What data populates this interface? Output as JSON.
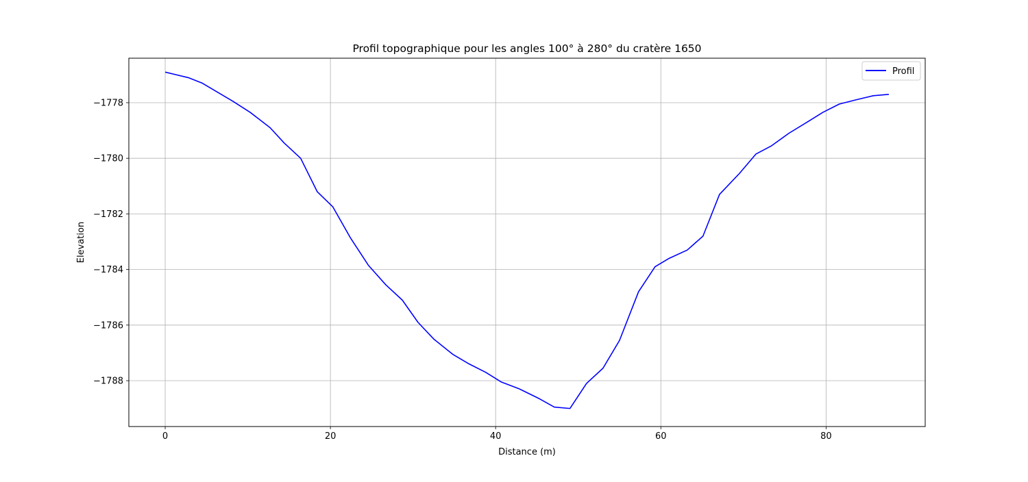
{
  "chart_data": {
    "type": "line",
    "title": "Profil topographique pour les angles 100° à 280° du cratère 1650",
    "xlabel": "Distance (m)",
    "ylabel": "Elevation",
    "xlim": [
      -4.4,
      92.0
    ],
    "ylim": [
      -1789.65,
      -1776.4
    ],
    "xticks": [
      0,
      20,
      40,
      60,
      80
    ],
    "yticks": [
      -1778,
      -1780,
      -1782,
      -1784,
      -1786,
      -1788
    ],
    "xtick_labels": [
      "0",
      "20",
      "40",
      "60",
      "80"
    ],
    "ytick_labels": [
      "−1778",
      "−1780",
      "−1782",
      "−1784",
      "−1786",
      "−1788"
    ],
    "grid": true,
    "legend_position": "top-right",
    "series": [
      {
        "name": "Profil",
        "color": "#0000ff",
        "x": [
          0,
          2.8,
          4.5,
          6.2,
          8.2,
          10.3,
          12.7,
          14.4,
          16.4,
          18.4,
          20.3,
          22.4,
          24.6,
          26.7,
          28.7,
          30.6,
          32.5,
          34.8,
          36.8,
          38.8,
          40.7,
          42.9,
          45.3,
          47.1,
          49.0,
          51.0,
          53.0,
          55.0,
          57.3,
          59.3,
          61.0,
          63.2,
          65.1,
          67.1,
          69.5,
          71.5,
          73.4,
          75.5,
          77.7,
          79.6,
          81.6,
          83.6,
          85.7,
          87.6
        ],
        "y": [
          -1776.9,
          -1777.1,
          -1777.3,
          -1777.6,
          -1777.95,
          -1778.35,
          -1778.9,
          -1779.45,
          -1780.0,
          -1781.2,
          -1781.75,
          -1782.85,
          -1783.85,
          -1784.55,
          -1785.1,
          -1785.9,
          -1786.5,
          -1787.05,
          -1787.4,
          -1787.7,
          -1788.05,
          -1788.3,
          -1788.65,
          -1788.95,
          -1789.0,
          -1788.1,
          -1787.55,
          -1786.55,
          -1784.8,
          -1783.9,
          -1783.6,
          -1783.3,
          -1782.8,
          -1781.3,
          -1780.55,
          -1779.85,
          -1779.55,
          -1779.1,
          -1778.7,
          -1778.35,
          -1778.05,
          -1777.9,
          -1777.75,
          -1777.7
        ]
      }
    ]
  }
}
